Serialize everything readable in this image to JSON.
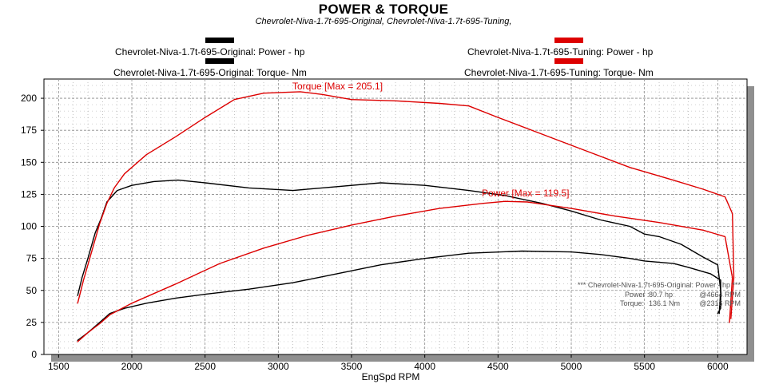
{
  "header": {
    "title": "POWER & TORQUE",
    "subtitle": "Chevrolet-Niva-1.7t-695-Original, Chevrolet-Niva-1.7t-695-Tuning,"
  },
  "legend": [
    {
      "label": "Chevrolet-Niva-1.7t-695-Original: Power -  hp",
      "color": "#000000"
    },
    {
      "label": "Chevrolet-Niva-1.7t-695-Original: Torque-  Nm",
      "color": "#000000"
    },
    {
      "label": "Chevrolet-Niva-1.7t-695-Tuning: Power -  hp",
      "color": "#dd0000"
    },
    {
      "label": "Chevrolet-Niva-1.7t-695-Tuning: Torque-  Nm",
      "color": "#dd0000"
    }
  ],
  "annotations": {
    "torque_max": "Torque [Max = 205.1]",
    "power_max": "Power  [Max = 119.5]"
  },
  "info_box": {
    "header": "*** Chevrolet-Niva-1.7t-695-Original: Power - hp ***",
    "power_label": "Power  :",
    "power_value": "80.7 hp",
    "power_rpm": "@4664 RPM",
    "torque_label": "Torque: ",
    "torque_value": "136.1 Nm",
    "torque_rpm": "@2316 RPM"
  },
  "colors": {
    "original": "#000000",
    "tuning": "#dd0000",
    "grid": "#8a8a8a",
    "shadow": "#8f8f8f"
  },
  "chart_data": {
    "type": "line",
    "title": "POWER & TORQUE",
    "xlabel": "EngSpd  RPM",
    "ylabel": "",
    "xlim": [
      1400,
      6200
    ],
    "ylim": [
      0,
      215
    ],
    "x_ticks": [
      1500,
      2000,
      2500,
      3000,
      3500,
      4000,
      4500,
      5000,
      5500,
      6000
    ],
    "y_ticks": [
      0,
      25,
      50,
      75,
      100,
      125,
      150,
      175,
      200
    ],
    "grid": true,
    "legend_position": "top",
    "series": [
      {
        "name": "Chevrolet-Niva-1.7t-695-Original: Power -  hp",
        "color": "#000000",
        "x": [
          1630,
          1700,
          1780,
          1850,
          1950,
          2100,
          2300,
          2500,
          2800,
          3100,
          3400,
          3700,
          4000,
          4300,
          4664,
          5000,
          5200,
          5400,
          5500,
          5700,
          5800,
          5950,
          6020,
          6020,
          6000
        ],
        "y": [
          11,
          17,
          25,
          32,
          36,
          40,
          44,
          47,
          51,
          56,
          63,
          70,
          75,
          79,
          80.7,
          80,
          78,
          75,
          73,
          71,
          68,
          63,
          58,
          36,
          32
        ]
      },
      {
        "name": "Chevrolet-Niva-1.7t-695-Original: Torque-  Nm",
        "color": "#000000",
        "x": [
          1630,
          1660,
          1700,
          1750,
          1790,
          1830,
          1900,
          2000,
          2150,
          2316,
          2500,
          2800,
          3100,
          3400,
          3700,
          4000,
          4300,
          4550,
          4800,
          5000,
          5200,
          5400,
          5500,
          5600,
          5750,
          5900,
          6000,
          6020,
          6010
        ],
        "y": [
          46,
          60,
          75,
          95,
          106,
          119,
          128,
          132,
          135,
          136.1,
          134,
          130,
          128,
          131,
          134,
          132,
          128,
          124,
          118,
          112,
          105,
          100,
          94,
          92,
          86,
          76,
          70,
          50,
          32
        ]
      },
      {
        "name": "Chevrolet-Niva-1.7t-695-Tuning: Power -  hp",
        "color": "#dd0000",
        "x": [
          1630,
          1700,
          1780,
          1850,
          2000,
          2300,
          2600,
          2900,
          3200,
          3500,
          3800,
          4100,
          4400,
          4550,
          4700,
          5000,
          5300,
          5600,
          5900,
          6050,
          6100,
          6080
        ],
        "y": [
          10,
          17,
          24,
          31,
          40,
          55,
          71,
          83,
          93,
          101,
          108,
          114,
          118,
          119.5,
          119,
          114,
          108,
          103,
          97,
          92,
          60,
          25
        ]
      },
      {
        "name": "Chevrolet-Niva-1.7t-695-Tuning: Torque-  Nm",
        "color": "#dd0000",
        "x": [
          1630,
          1670,
          1720,
          1780,
          1830,
          1880,
          1950,
          2100,
          2300,
          2500,
          2700,
          2900,
          3150,
          3300,
          3500,
          3800,
          4100,
          4300,
          4500,
          4800,
          5100,
          5400,
          5700,
          5900,
          6050,
          6100,
          6110,
          6090
        ],
        "y": [
          40,
          58,
          78,
          102,
          118,
          130,
          141,
          156,
          170,
          185,
          199,
          204,
          205.1,
          203,
          199,
          198,
          196,
          194,
          185,
          172,
          159,
          146,
          136,
          129,
          123,
          110,
          60,
          28
        ]
      }
    ]
  }
}
